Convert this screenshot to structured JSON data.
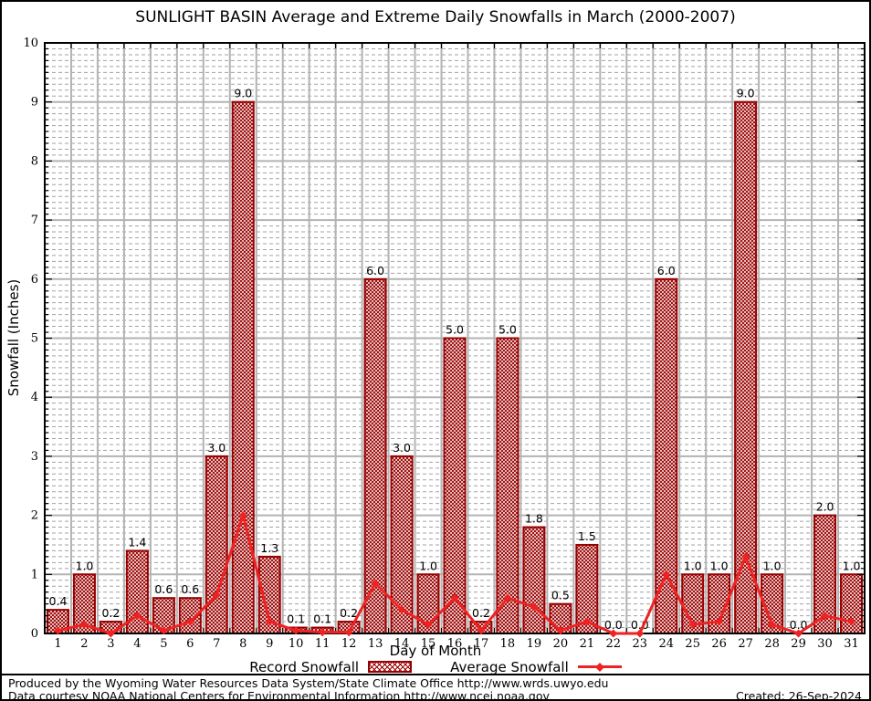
{
  "chart_data": {
    "type": "bar",
    "title": "SUNLIGHT BASIN Average and Extreme Daily Snowfalls in March (2000-2007)",
    "xlabel": "Day of Month",
    "ylabel": "Snowfall (Inches)",
    "x": [
      1,
      2,
      3,
      4,
      5,
      6,
      7,
      8,
      9,
      10,
      11,
      12,
      13,
      14,
      15,
      16,
      17,
      18,
      19,
      20,
      21,
      22,
      23,
      24,
      25,
      26,
      27,
      28,
      29,
      30,
      31
    ],
    "ylim": [
      0,
      10
    ],
    "yticks": [
      0,
      1,
      2,
      3,
      4,
      5,
      6,
      7,
      8,
      9,
      10
    ],
    "grid": {
      "major": "solid gray at integers and day boundaries",
      "minor": "dashed gray every 0.1 inch"
    },
    "legend_position": "bottom-center",
    "series": [
      {
        "name": "Record Snowfall",
        "type": "bar",
        "color": "#990000",
        "fill": "crosshatch",
        "values": [
          0.4,
          1.0,
          0.2,
          1.4,
          0.6,
          0.6,
          3.0,
          9.0,
          1.3,
          0.1,
          0.1,
          0.2,
          6.0,
          3.0,
          1.0,
          5.0,
          0.2,
          5.0,
          1.8,
          0.5,
          1.5,
          0.0,
          0.0,
          6.0,
          1.0,
          1.0,
          9.0,
          1.0,
          0.0,
          2.0,
          1.0
        ]
      },
      {
        "name": "Average Snowfall",
        "type": "line",
        "color": "#ee2222",
        "marker": "diamond",
        "values": [
          0.05,
          0.15,
          0.0,
          0.3,
          0.05,
          0.2,
          0.65,
          2.0,
          0.2,
          0.05,
          0.02,
          0.02,
          0.85,
          0.4,
          0.15,
          0.6,
          0.05,
          0.6,
          0.45,
          0.05,
          0.2,
          0.0,
          0.0,
          1.0,
          0.15,
          0.2,
          1.3,
          0.15,
          0.0,
          0.3,
          0.2
        ]
      }
    ]
  },
  "legend": {
    "record": "Record Snowfall",
    "average": "Average Snowfall"
  },
  "footer": {
    "line1": "Produced by the Wyoming Water Resources Data System/State Climate Office http://www.wrds.uwyo.edu",
    "line2": "Data courtesy NOAA National Centers for Environmental Information http://www.ncei.noaa.gov",
    "created": "Created: 26-Sep-2024"
  },
  "colors": {
    "bar": "#990000",
    "line": "#ee2222",
    "grid_major": "#b3b3b3",
    "grid_minor": "#a3a3a3",
    "axis": "#000000",
    "background": "#ffffff"
  }
}
